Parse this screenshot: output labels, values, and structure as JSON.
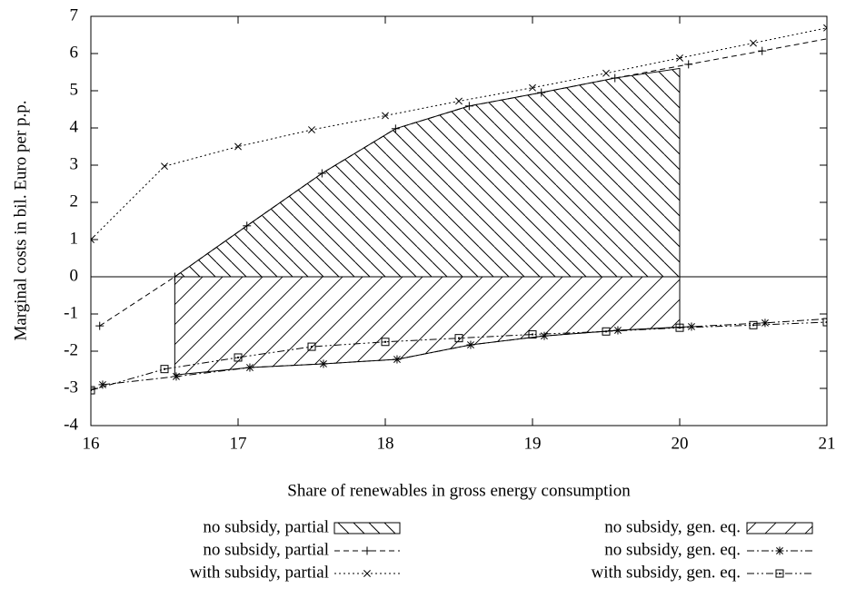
{
  "chart_data": {
    "type": "line",
    "xlabel": "Share of renewables in gross energy consumption",
    "ylabel": "Marginal costs in bil. Euro per p.p.",
    "xlim": [
      16,
      21
    ],
    "ylim": [
      -4,
      7
    ],
    "xticks": [
      16,
      17,
      18,
      19,
      20,
      21
    ],
    "yticks": [
      -4,
      -3,
      -2,
      -1,
      0,
      1,
      2,
      3,
      4,
      5,
      6,
      7
    ],
    "zeroaxis": true,
    "legend": "bottom",
    "series": [
      {
        "name": "no subsidy, partial",
        "style": "area",
        "pattern": "backslash",
        "color": "#000000",
        "x": [
          16.57,
          17.06,
          17.57,
          18.07,
          18.57,
          19.06,
          19.56,
          20.0
        ],
        "values": [
          0,
          1.37,
          2.78,
          3.98,
          4.59,
          4.95,
          5.34,
          5.6
        ]
      },
      {
        "name": "no subsidy, partial",
        "style": "line",
        "marker": "plus",
        "dash": "dashed",
        "color": "#000000",
        "x": [
          16.06,
          16.57,
          17.06,
          17.57,
          18.07,
          18.57,
          19.06,
          19.56,
          20.06,
          20.56,
          21.06
        ],
        "values": [
          -1.32,
          0,
          1.37,
          2.78,
          3.98,
          4.59,
          4.95,
          5.34,
          5.71,
          6.07,
          6.44
        ]
      },
      {
        "name": "with subsidy, partial",
        "style": "line",
        "marker": "cross",
        "dash": "dotted",
        "color": "#000000",
        "x": [
          16,
          16.5,
          17,
          17.5,
          18,
          18.5,
          19,
          19.5,
          20,
          20.5,
          21.0
        ],
        "values": [
          1,
          2.97,
          3.5,
          3.95,
          4.33,
          4.72,
          5.08,
          5.47,
          5.88,
          6.28,
          6.69
        ]
      },
      {
        "name": "no subsidy, gen. eq.",
        "style": "area",
        "pattern": "slash",
        "color": "#000000",
        "x": [
          16.57,
          17.08,
          17.58,
          18.08,
          18.58,
          19.08,
          19.58,
          20.0
        ],
        "values": [
          -2.64,
          -2.44,
          -2.34,
          -2.22,
          -1.83,
          -1.59,
          -1.44,
          -1.35
        ]
      },
      {
        "name": "no subsidy, gen. eq.",
        "style": "line",
        "marker": "star",
        "dash": "dashdot",
        "color": "#000000",
        "x": [
          16.08,
          16.58,
          17.08,
          17.58,
          18.08,
          18.58,
          19.08,
          19.58,
          20.08,
          20.58,
          21.08
        ],
        "values": [
          -2.9,
          -2.68,
          -2.44,
          -2.34,
          -2.22,
          -1.83,
          -1.59,
          -1.44,
          -1.34,
          -1.24,
          -1.11
        ]
      },
      {
        "name": "with subsidy, gen. eq.",
        "style": "line",
        "marker": "square",
        "dash": "dashdotdot",
        "color": "#000000",
        "x": [
          16,
          16.5,
          17,
          17.5,
          18,
          18.5,
          19,
          19.5,
          20,
          20.5,
          21
        ],
        "values": [
          -3.05,
          -2.48,
          -2.17,
          -1.88,
          -1.75,
          -1.65,
          -1.55,
          -1.47,
          -1.37,
          -1.3,
          -1.22
        ]
      }
    ]
  }
}
